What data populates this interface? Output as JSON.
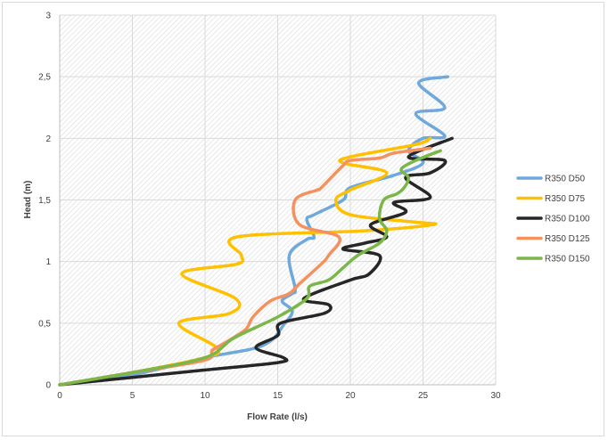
{
  "chart_data": {
    "type": "line",
    "xlabel": "Flow Rate (l/s)",
    "ylabel": "Head (m)",
    "xlim": [
      0,
      30
    ],
    "ylim": [
      0,
      3
    ],
    "x_ticks": [
      "0",
      "5",
      "10",
      "15",
      "20",
      "25",
      "30"
    ],
    "y_ticks": [
      "0",
      "0,5",
      "1",
      "1,5",
      "2",
      "2,5",
      "3"
    ],
    "grid": true,
    "legend_position": "right",
    "series": [
      {
        "name": "R350 D50",
        "color": "#6fa8dc",
        "x": [
          0,
          5,
          10,
          14,
          15.5,
          16,
          15.3,
          16,
          16.2,
          15.8,
          17,
          17.5,
          17,
          17.5,
          19.5,
          20,
          23,
          25,
          24,
          25,
          26.5,
          24.5,
          26.5,
          24.7,
          26.7
        ],
        "y": [
          0,
          0.08,
          0.22,
          0.32,
          0.5,
          0.6,
          0.68,
          0.74,
          0.78,
          1.05,
          1.18,
          1.2,
          1.34,
          1.38,
          1.5,
          1.6,
          1.7,
          1.8,
          1.9,
          2.0,
          2.02,
          2.2,
          2.25,
          2.45,
          2.5
        ]
      },
      {
        "name": "R350 D75",
        "color": "#ffc000",
        "x": [
          0,
          5,
          10,
          10.8,
          8.2,
          11.7,
          12.1,
          8.4,
          12.2,
          12.5,
          12.2,
          21,
          25.7,
          24.5,
          20,
          19,
          20,
          22.5,
          19.5,
          20,
          24.5,
          25.5
        ],
        "y": [
          0,
          0.1,
          0.22,
          0.3,
          0.5,
          0.58,
          0.7,
          0.9,
          0.98,
          1.05,
          1.2,
          1.25,
          1.3,
          1.32,
          1.38,
          1.5,
          1.58,
          1.72,
          1.8,
          1.85,
          1.95,
          2.0
        ]
      },
      {
        "name": "R350 D100",
        "color": "#262626",
        "x": [
          0,
          5,
          10,
          15,
          15.4,
          13.5,
          15,
          15.2,
          18.2,
          18.5,
          16.8,
          20,
          21.3,
          22,
          19.5,
          21,
          22.5,
          21.4,
          23.8,
          23,
          25.5,
          23.8,
          25.5,
          26.5,
          24,
          27
        ],
        "y": [
          0,
          0.06,
          0.12,
          0.18,
          0.22,
          0.3,
          0.4,
          0.5,
          0.58,
          0.65,
          0.7,
          0.85,
          0.9,
          1.05,
          1.1,
          1.15,
          1.2,
          1.3,
          1.4,
          1.48,
          1.52,
          1.68,
          1.72,
          1.82,
          1.85,
          2.0
        ]
      },
      {
        "name": "R350 D125",
        "color": "#f4915f",
        "x": [
          0,
          5,
          10,
          10.5,
          11.5,
          12.8,
          13.3,
          14.5,
          15.8,
          16.5,
          18,
          18.5,
          19.2,
          16.5,
          16.2,
          17.7,
          18,
          19.5,
          20,
          22,
          23,
          25.5
        ],
        "y": [
          0,
          0.1,
          0.2,
          0.28,
          0.35,
          0.45,
          0.55,
          0.68,
          0.74,
          0.82,
          0.98,
          1.05,
          1.2,
          1.3,
          1.5,
          1.58,
          1.6,
          1.78,
          1.82,
          1.84,
          1.88,
          1.92
        ]
      },
      {
        "name": "R350 D150",
        "color": "#7ab648",
        "x": [
          0,
          5,
          10,
          12,
          15,
          17,
          17.2,
          18.5,
          19.5,
          20.5,
          22,
          22.5,
          22,
          22.3,
          23.2,
          23.7,
          24,
          23.5,
          24.5,
          26.2
        ],
        "y": [
          0,
          0.1,
          0.22,
          0.38,
          0.55,
          0.7,
          0.8,
          0.85,
          0.95,
          1.05,
          1.15,
          1.25,
          1.35,
          1.5,
          1.55,
          1.6,
          1.68,
          1.75,
          1.82,
          1.9
        ]
      }
    ]
  }
}
